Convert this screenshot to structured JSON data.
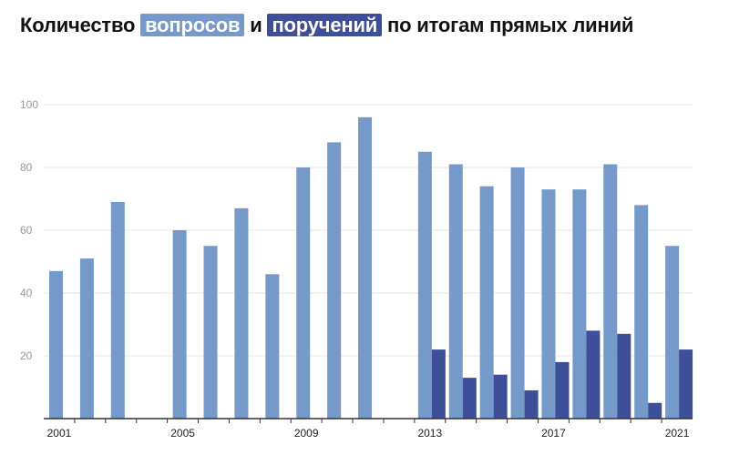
{
  "title": {
    "part1": "Количество ",
    "highlight1": "вопросов",
    "part2": " и ",
    "highlight2": "поручений",
    "part3": " по итогам прямых линий"
  },
  "colors": {
    "questions": "#7599c9",
    "orders": "#3e4e98",
    "grid": "#e6e6e6",
    "axis": "#333333"
  },
  "chart_data": {
    "type": "bar",
    "categories": [
      "2001",
      "2002",
      "2003",
      "2004",
      "2005",
      "2006",
      "2007",
      "2008",
      "2009",
      "2010",
      "2011",
      "2012",
      "2013",
      "2014",
      "2015",
      "2016",
      "2017",
      "2018",
      "2019",
      "2020",
      "2021"
    ],
    "x_tick_labels": [
      {
        "index": 0,
        "label": "2001"
      },
      {
        "index": 4,
        "label": "2005"
      },
      {
        "index": 8,
        "label": "2009"
      },
      {
        "index": 12,
        "label": "2013"
      },
      {
        "index": 16,
        "label": "2017"
      },
      {
        "index": 20,
        "label": "2021"
      }
    ],
    "series": [
      {
        "name": "вопросов",
        "values": [
          47,
          51,
          69,
          null,
          60,
          55,
          67,
          46,
          80,
          88,
          96,
          null,
          85,
          81,
          74,
          80,
          73,
          73,
          81,
          68,
          55
        ]
      },
      {
        "name": "поручений",
        "values": [
          null,
          null,
          null,
          null,
          null,
          null,
          null,
          null,
          null,
          null,
          null,
          null,
          22,
          13,
          14,
          9,
          18,
          28,
          27,
          5,
          22
        ]
      }
    ],
    "ylim": [
      0,
      100
    ],
    "yticks": [
      20,
      40,
      60,
      80,
      100
    ],
    "grid": true,
    "xlabel": "",
    "ylabel": ""
  }
}
